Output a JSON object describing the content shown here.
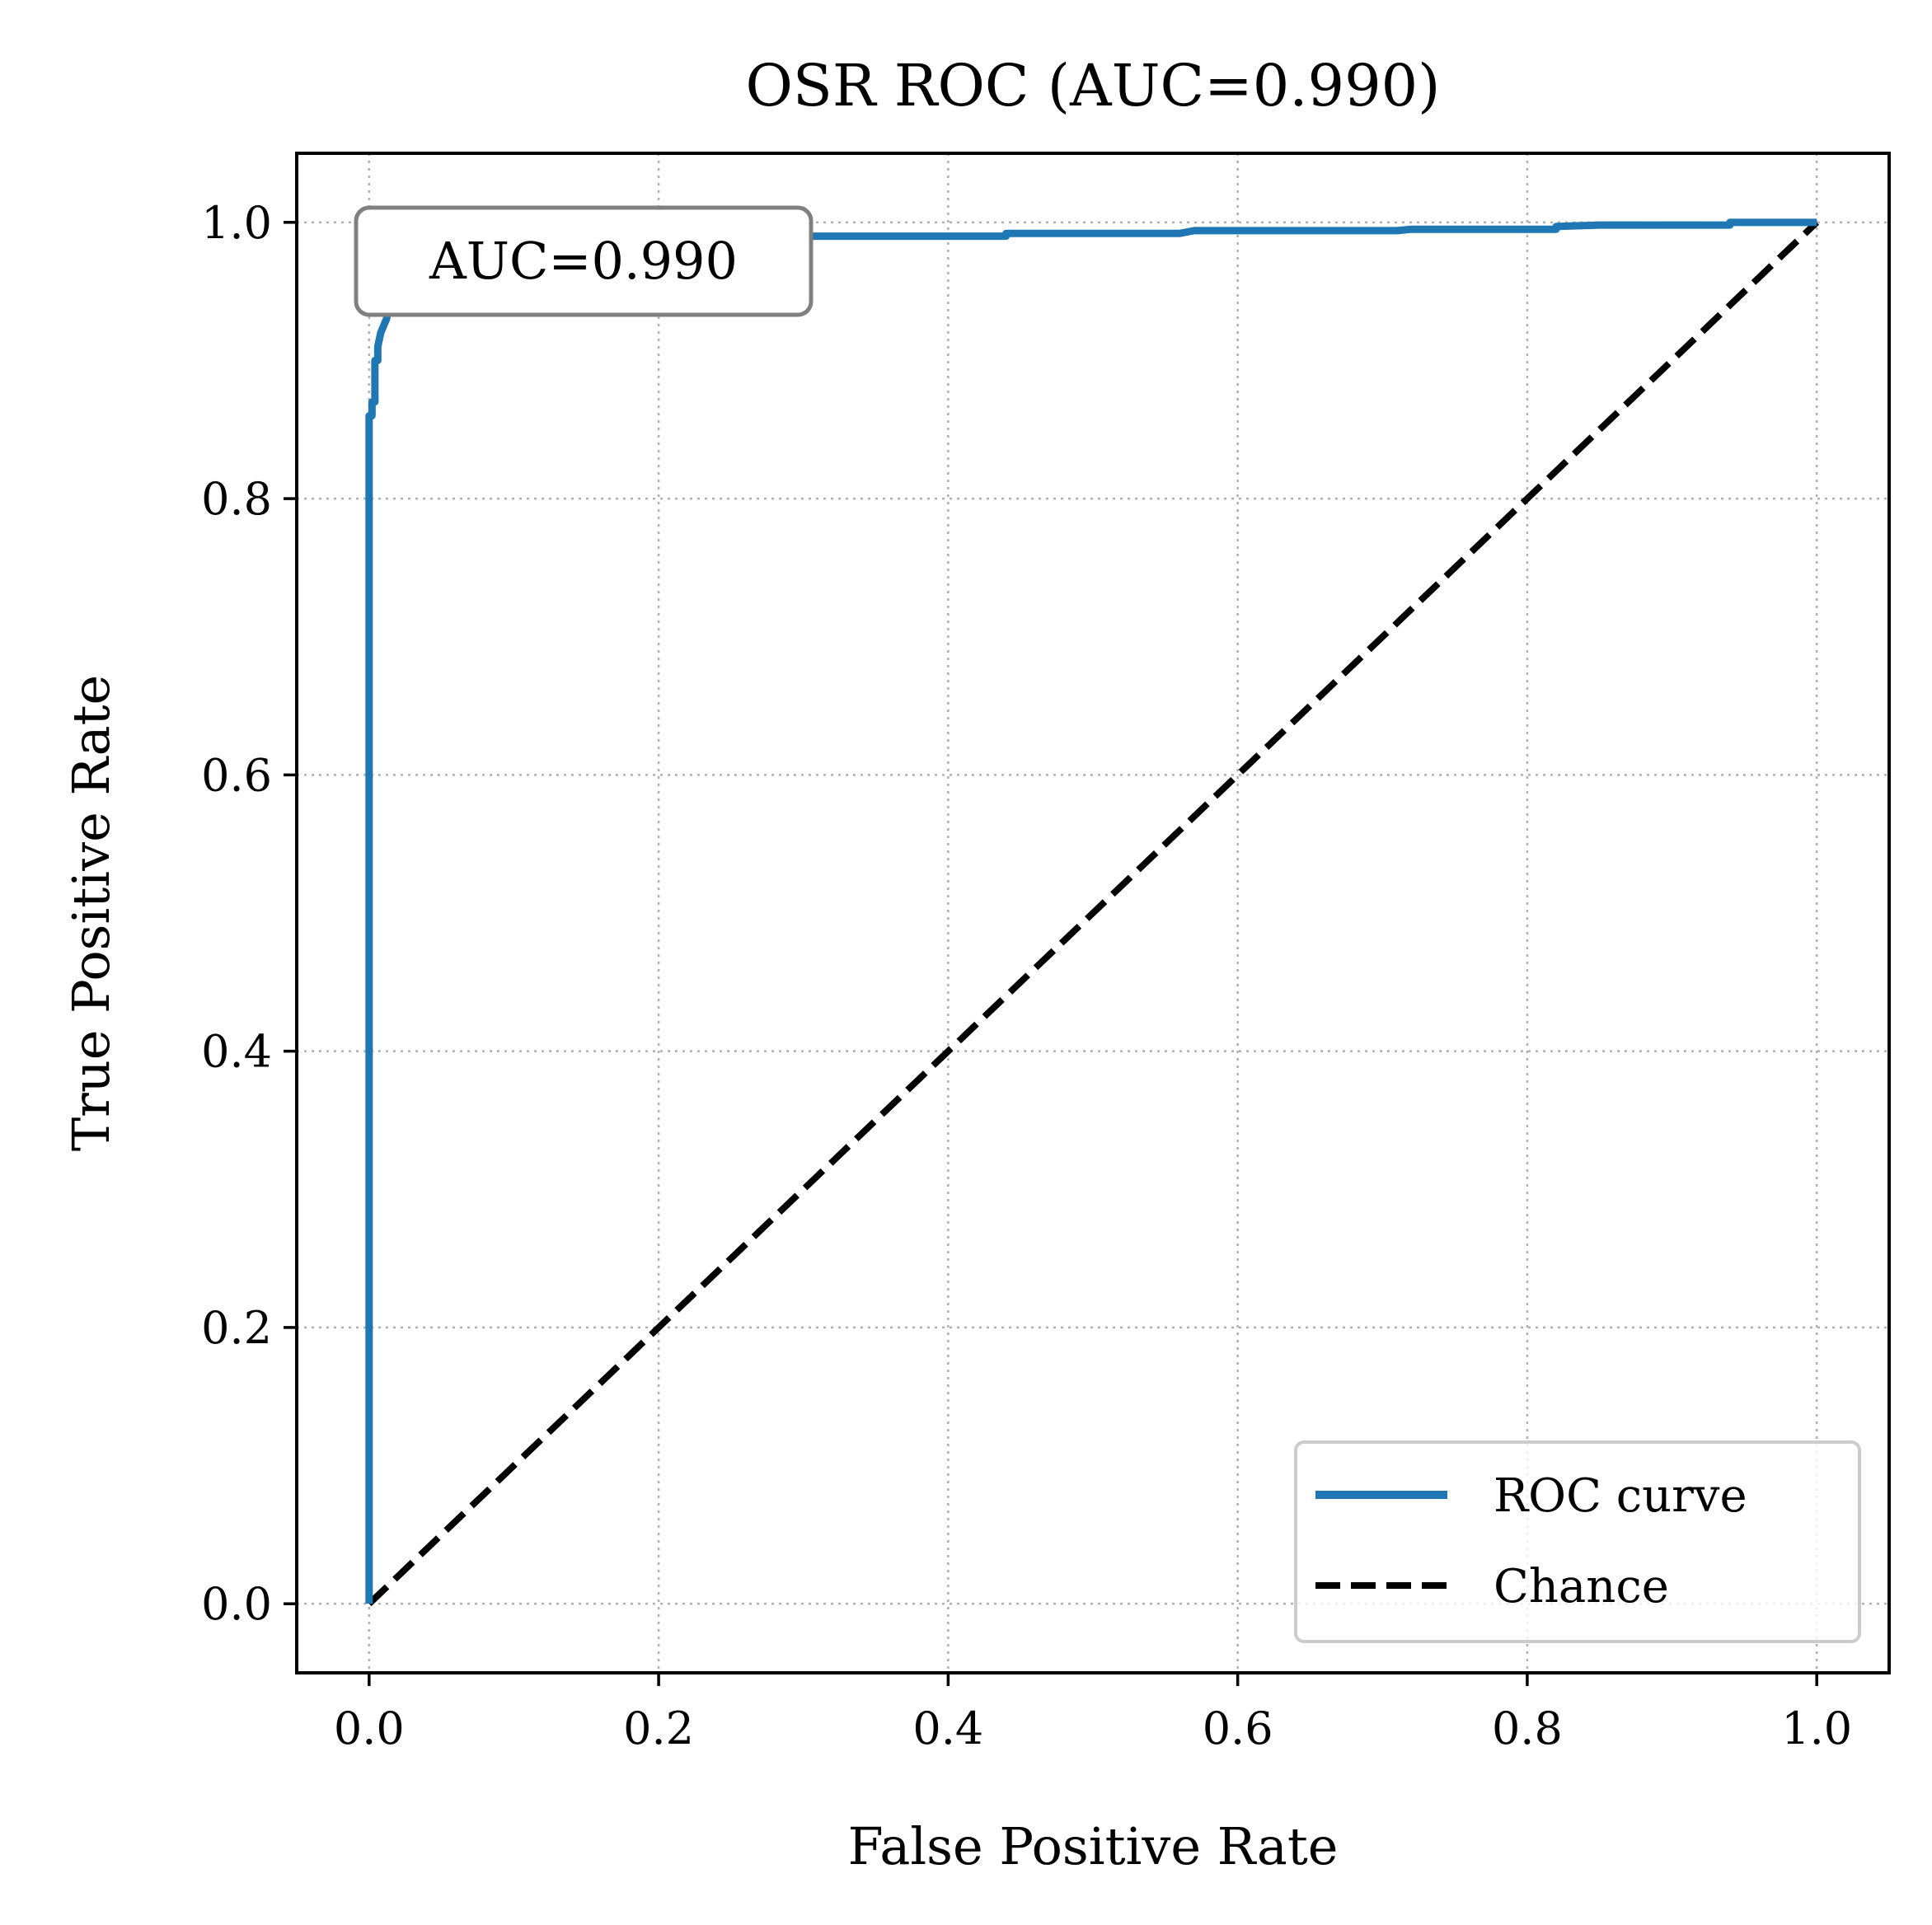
{
  "chart_data": {
    "type": "line",
    "title": "OSR ROC (AUC=0.990)",
    "xlabel": "False Positive Rate",
    "ylabel": "True Positive Rate",
    "xlim": [
      -0.05,
      1.05
    ],
    "ylim": [
      -0.05,
      1.05
    ],
    "xticks": [
      "0.0",
      "0.2",
      "0.4",
      "0.6",
      "0.8",
      "1.0"
    ],
    "yticks": [
      "0.0",
      "0.2",
      "0.4",
      "0.6",
      "0.8",
      "1.0"
    ],
    "grid": true,
    "legend_position": "lower-right",
    "annotation": "AUC=0.990",
    "series": [
      {
        "name": "ROC curve",
        "color": "#1f77b4",
        "style": "solid",
        "x": [
          0.0,
          0.0,
          0.002,
          0.002,
          0.004,
          0.004,
          0.006,
          0.006,
          0.008,
          0.01,
          0.012,
          0.014,
          0.018,
          0.022,
          0.026,
          0.05,
          0.1,
          0.15,
          0.2,
          0.25,
          0.3,
          0.44,
          0.44,
          0.56,
          0.57,
          0.71,
          0.72,
          0.82,
          0.82,
          0.85,
          0.94,
          0.94,
          1.0
        ],
        "y": [
          0.0,
          0.86,
          0.86,
          0.87,
          0.87,
          0.9,
          0.9,
          0.91,
          0.92,
          0.925,
          0.93,
          0.94,
          0.95,
          0.96,
          0.97,
          0.975,
          0.98,
          0.985,
          0.988,
          0.989,
          0.99,
          0.99,
          0.992,
          0.992,
          0.994,
          0.994,
          0.995,
          0.995,
          0.997,
          0.998,
          0.998,
          1.0,
          1.0
        ]
      },
      {
        "name": "Chance",
        "color": "#000000",
        "style": "dashed",
        "x": [
          0.0,
          1.0
        ],
        "y": [
          0.0,
          1.0
        ]
      }
    ]
  }
}
